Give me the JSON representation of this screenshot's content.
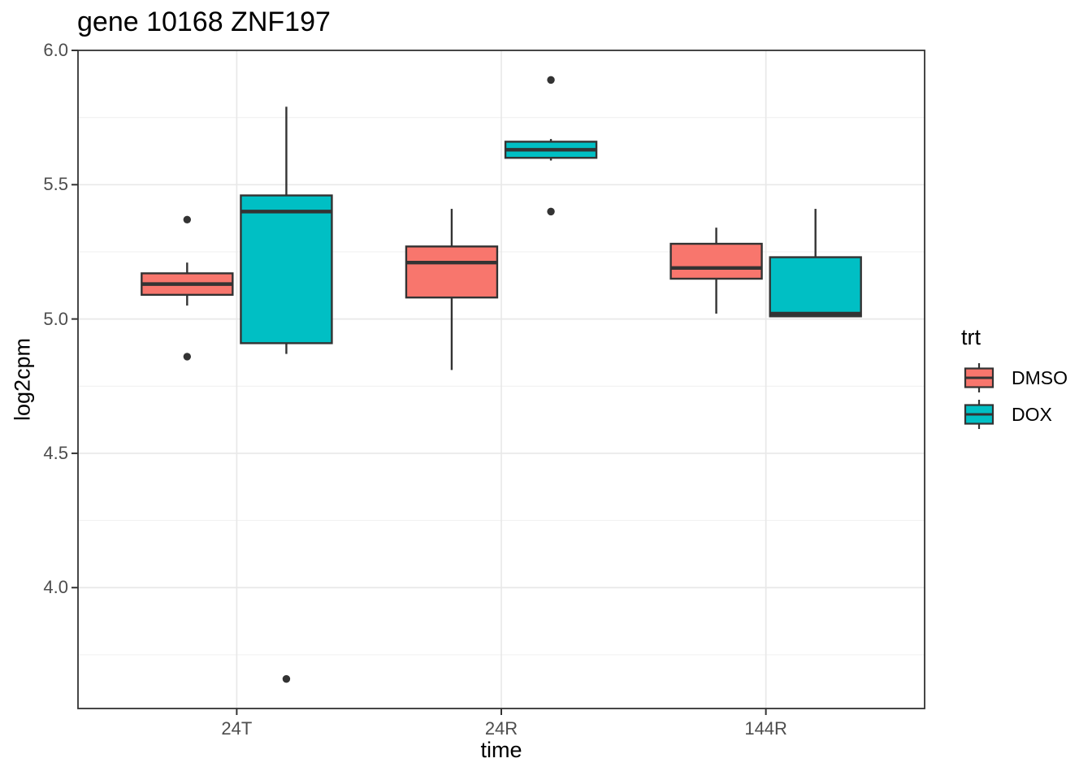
{
  "chart_data": {
    "type": "boxplot",
    "title": "gene 10168 ZNF197",
    "xlabel": "time",
    "ylabel": "log2cpm",
    "categories": [
      "24T",
      "24R",
      "144R"
    ],
    "y_tick_labels": [
      "6.0",
      "5.5",
      "5.0",
      "4.5",
      "4.0"
    ],
    "y_ticks": [
      6.0,
      5.5,
      5.0,
      4.5,
      4.0
    ],
    "y_minor": [
      5.75,
      5.25,
      4.75,
      4.25,
      3.75
    ],
    "ylim": [
      3.55,
      6.0
    ],
    "grid": true,
    "legend": {
      "title": "trt",
      "position": "right",
      "entries": [
        {
          "label": "DMSO",
          "color": "#F8766D"
        },
        {
          "label": "DOX",
          "color": "#00BFC4"
        }
      ]
    },
    "series": [
      {
        "name": "DMSO",
        "color": "#F8766D",
        "boxes": [
          {
            "category": "24T",
            "whisker_low": 5.05,
            "q1": 5.09,
            "median": 5.13,
            "q3": 5.17,
            "whisker_high": 5.21,
            "outliers": [
              5.37,
              4.86
            ]
          },
          {
            "category": "24R",
            "whisker_low": 4.81,
            "q1": 5.08,
            "median": 5.21,
            "q3": 5.27,
            "whisker_high": 5.41,
            "outliers": []
          },
          {
            "category": "144R",
            "whisker_low": 5.02,
            "q1": 5.15,
            "median": 5.19,
            "q3": 5.28,
            "whisker_high": 5.34,
            "outliers": []
          }
        ]
      },
      {
        "name": "DOX",
        "color": "#00BFC4",
        "boxes": [
          {
            "category": "24T",
            "whisker_low": 4.87,
            "q1": 4.91,
            "median": 5.4,
            "q3": 5.46,
            "whisker_high": 5.79,
            "outliers": [
              3.66
            ]
          },
          {
            "category": "24R",
            "whisker_low": 5.59,
            "q1": 5.6,
            "median": 5.63,
            "q3": 5.66,
            "whisker_high": 5.67,
            "outliers": [
              5.89,
              5.4
            ]
          },
          {
            "category": "144R",
            "whisker_low": 5.01,
            "q1": 5.01,
            "median": 5.02,
            "q3": 5.23,
            "whisker_high": 5.41,
            "outliers": []
          }
        ]
      }
    ],
    "style": {
      "box_border_color": "#333333",
      "outlier_color": "#333333",
      "grid_major_color": "#E8E8E8",
      "grid_minor_color": "#F1F1F1",
      "panel_border_color": "#333333",
      "tick_color": "#333333"
    }
  }
}
